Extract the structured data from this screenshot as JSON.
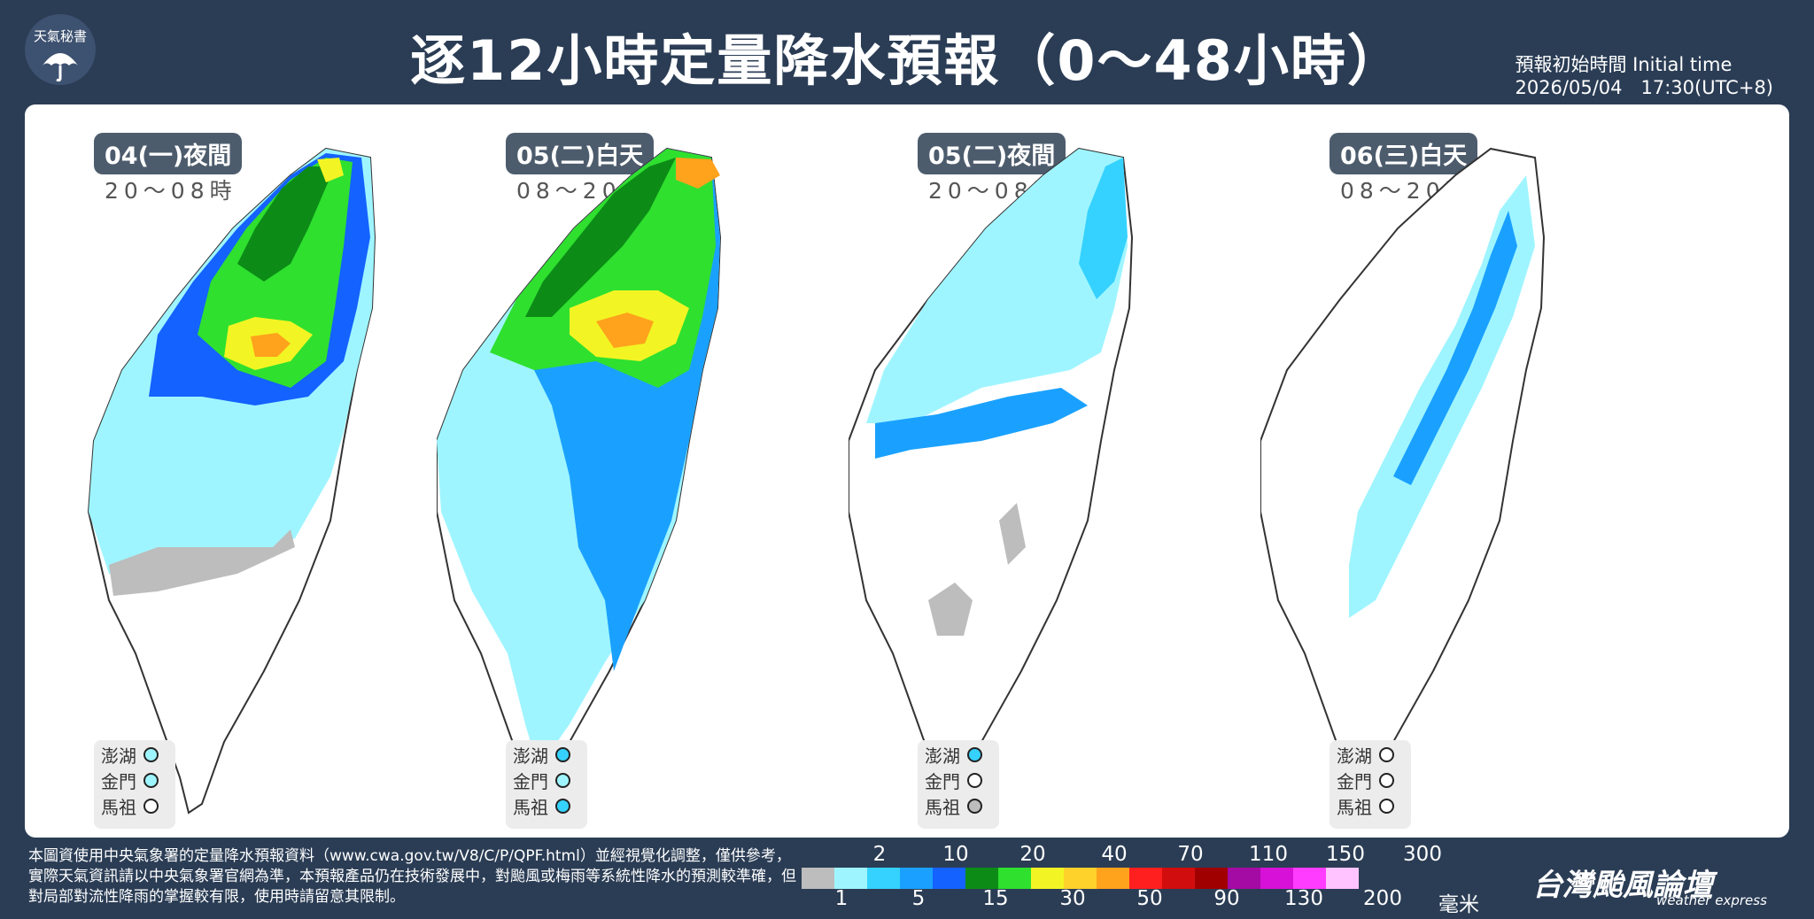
{
  "logo": {
    "text": "天氣秘書",
    "icon": "umbrella-icon"
  },
  "title": "逐12小時定量降水預報（0～48小時）",
  "initial_time": {
    "label": "預報初始時間 Initial time",
    "value": "2026/05/04　17:30(UTC+8)"
  },
  "panels": [
    {
      "date": "04(一)夜間",
      "hours": "20～08時",
      "penghu": "1",
      "kinmen": "1",
      "matsu": "0"
    },
    {
      "date": "05(二)白天",
      "hours": "08～20時",
      "penghu": "2",
      "kinmen": "1",
      "matsu": "2"
    },
    {
      "date": "05(二)夜間",
      "hours": "20～08時",
      "penghu": "2",
      "kinmen": "0",
      "matsu": "gray"
    },
    {
      "date": "06(三)白天",
      "hours": "08～20時",
      "penghu": "0",
      "kinmen": "0",
      "matsu": "0"
    }
  ],
  "island_names": {
    "penghu": "澎湖",
    "kinmen": "金門",
    "matsu": "馬祖"
  },
  "note": "本圖資使用中央氣象署的定量降水預報資料（www.cwa.gov.tw/V8/C/P/QPF.html）並經視覺化調整，僅供參考，實際天氣資訊請以中央氣象署官網為準，本預報產品仍在技術發展中，對颱風或梅雨等系統性降水的預測較準確，但對局部對流性降雨的掌握較有限，使用時請留意其限制。",
  "colorbar": {
    "colors": [
      "#bdbdbd",
      "#9ff5ff",
      "#35d2ff",
      "#1aa1ff",
      "#1462ff",
      "#0c8c17",
      "#2fe02f",
      "#f2f523",
      "#ffd12b",
      "#ffa21c",
      "#ff1f1f",
      "#d10d0d",
      "#a10000",
      "#a40aa4",
      "#d711d7",
      "#ff3cff",
      "#ffc4ff"
    ],
    "top_labels": [
      "2",
      "10",
      "20",
      "40",
      "70",
      "110",
      "150",
      "300"
    ],
    "bottom_labels": [
      "1",
      "5",
      "15",
      "30",
      "50",
      "90",
      "130",
      "200"
    ],
    "unit": "毫米"
  },
  "brand": {
    "name": "台灣颱風論壇",
    "sub": "weather express"
  }
}
